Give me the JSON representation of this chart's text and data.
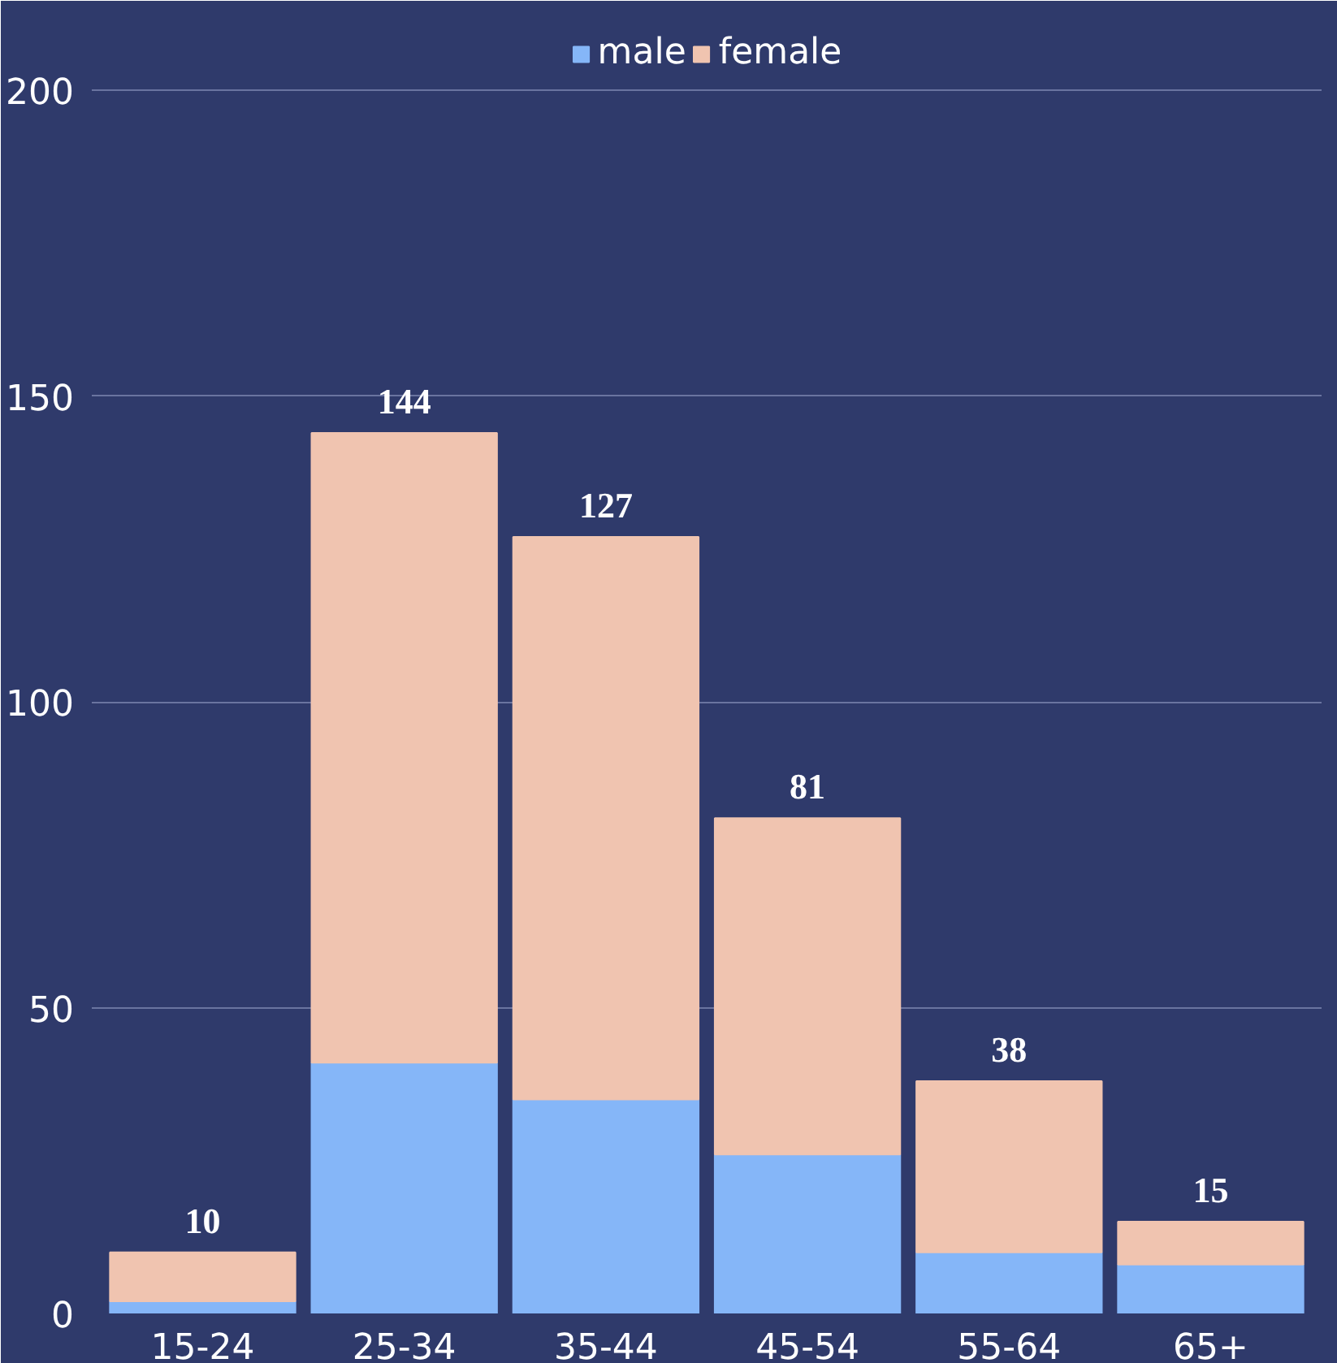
{
  "chart_data": {
    "type": "bar",
    "stacked": true,
    "categories": [
      "15-24",
      "25-34",
      "35-44",
      "45-54",
      "55-64",
      "65+"
    ],
    "series": [
      {
        "name": "male",
        "color": "#85b6f8",
        "values": [
          2,
          41,
          35,
          26,
          10,
          8
        ]
      },
      {
        "name": "female",
        "color": "#f0c4b0",
        "values": [
          8,
          103,
          92,
          55,
          28,
          7
        ]
      }
    ],
    "totals": [
      "10",
      "144",
      "127",
      "81",
      "38",
      "15"
    ],
    "ylim": [
      0,
      200
    ],
    "yticks": [
      0,
      50,
      100,
      150,
      200
    ],
    "grid": "y",
    "legend": "top"
  }
}
